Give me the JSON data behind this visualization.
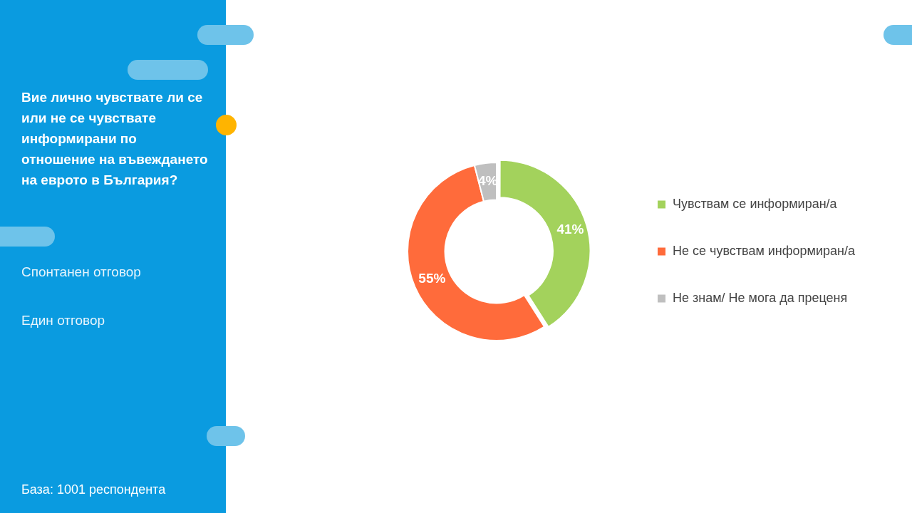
{
  "chart_data": {
    "type": "donut",
    "title": "Вие лично чувствате ли се или не се чувствате информирани по отношение на въвеждането на еврото в България?",
    "annotations": [
      "Спонтанен отговор",
      "Един отговор",
      "База:  1001 респондента"
    ],
    "categories": [
      "Чувствам се информиран/а",
      "Не се чувствам информиран/а",
      "Не знам/ Не мога да преценя"
    ],
    "values": [
      41,
      55,
      4
    ],
    "colors": [
      "#a3d25c",
      "#ff6b3b",
      "#bfbfbf"
    ],
    "value_labels": [
      "41%",
      "55%",
      "4%"
    ],
    "legend": "right"
  }
}
